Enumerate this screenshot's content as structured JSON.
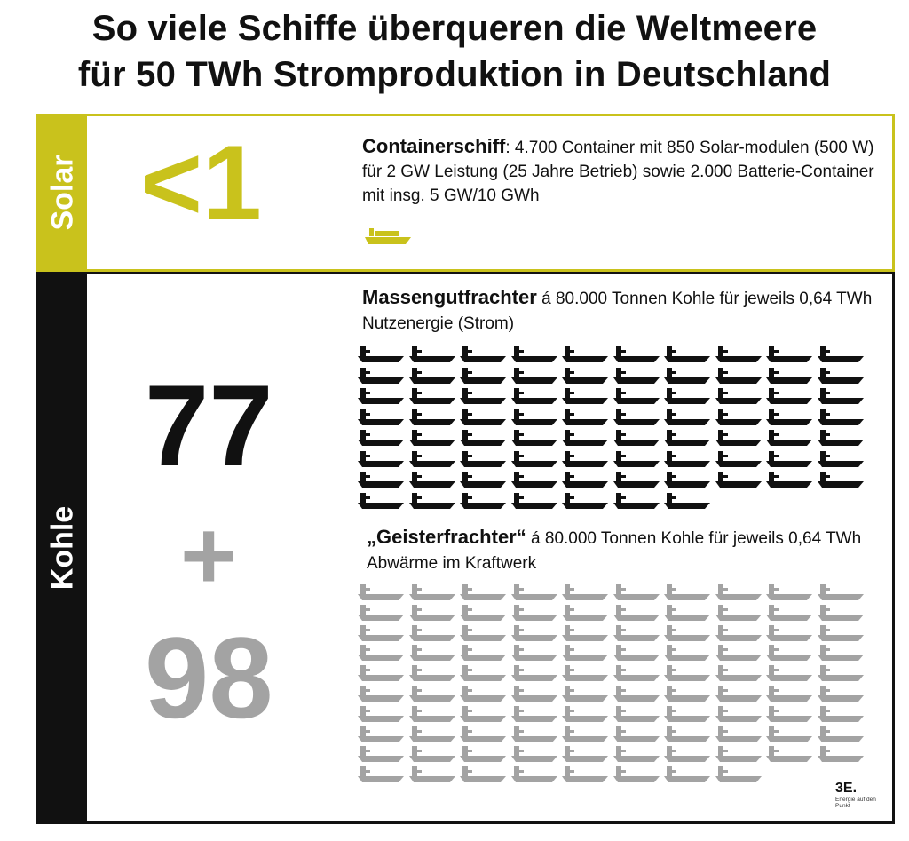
{
  "title": {
    "line1": "So viele Schiffe überqueren die Weltmeere",
    "line2": "für 50 TWh Stromproduktion in Deutschland"
  },
  "colors": {
    "solar": "#c9c21c",
    "coal": "#111111",
    "ghost": "#a3a3a3"
  },
  "solar": {
    "side_label": "Solar",
    "count": "<1",
    "ship_name": "Containerschiff",
    "description": ": 4.700 Container mit 850 Solar-modulen (500 W) für 2 GW Leistung (25 Jahre Betrieb) sowie 2.000 Batterie-Container mit insg. 5 GW/10 GWh",
    "icon": "container-ship-icon"
  },
  "kohle": {
    "side_label": "Kohle",
    "count_bulk": "77",
    "plus": "+",
    "count_ghost": "98",
    "bulk": {
      "name": "Massengutfrachter",
      "description": " á 80.000 Tonnen Kohle für jeweils 0,64 TWh Nutzenergie (Strom)",
      "icon": "bulk-carrier-icon",
      "ship_count": 77
    },
    "ghost": {
      "name": "„Geisterfrachter“",
      "description": " á 80.000 Tonnen Kohle für jeweils 0,64 TWh Abwärme im Kraftwerk",
      "icon": "bulk-carrier-icon",
      "ship_count": 98
    }
  },
  "logo": {
    "mark": "3E.",
    "tagline": "Energie auf den Punkt"
  }
}
